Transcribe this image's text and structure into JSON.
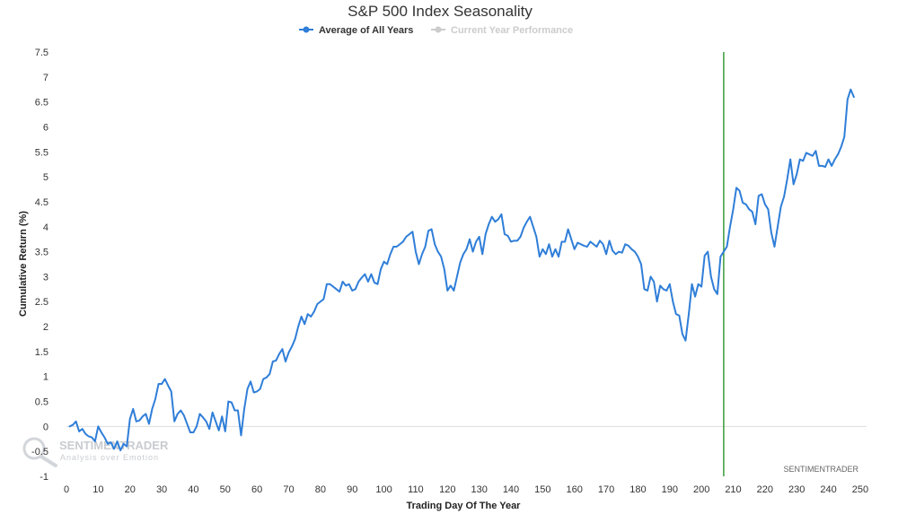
{
  "chart_data": {
    "type": "line",
    "title": "S&P 500 Index Seasonality",
    "xlabel": "Trading Day Of The Year",
    "ylabel": "Cumulative Return (%)",
    "xlim": [
      0,
      252
    ],
    "ylim": [
      -1,
      7.5
    ],
    "x_ticks": [
      0,
      10,
      20,
      30,
      40,
      50,
      60,
      70,
      80,
      90,
      100,
      110,
      120,
      130,
      140,
      150,
      160,
      170,
      180,
      190,
      200,
      210,
      220,
      230,
      240,
      250
    ],
    "y_ticks": [
      -1,
      -0.5,
      0,
      0.5,
      1,
      1.5,
      2,
      2.5,
      3,
      3.5,
      4,
      4.5,
      5,
      5.5,
      6,
      6.5,
      7,
      7.5
    ],
    "grid": "horizontal-zero-line-only",
    "legend_position": "top-center",
    "vertical_marker_x": 207,
    "vertical_marker_color": "#3a9b3a",
    "series": [
      {
        "name": "Average of All Years",
        "color": "#2f7ed8",
        "visible": true,
        "points": [
          [
            1,
            0.0
          ],
          [
            2,
            0.03
          ],
          [
            3,
            0.1
          ],
          [
            4,
            -0.1
          ],
          [
            5,
            -0.05
          ],
          [
            6,
            -0.15
          ],
          [
            7,
            -0.2
          ],
          [
            8,
            -0.22
          ],
          [
            9,
            -0.3
          ],
          [
            10,
            0.0
          ],
          [
            11,
            -0.12
          ],
          [
            12,
            -0.22
          ],
          [
            13,
            -0.35
          ],
          [
            14,
            -0.32
          ],
          [
            15,
            -0.45
          ],
          [
            16,
            -0.3
          ],
          [
            17,
            -0.48
          ],
          [
            18,
            -0.35
          ],
          [
            19,
            -0.4
          ],
          [
            20,
            0.15
          ],
          [
            21,
            0.35
          ],
          [
            22,
            0.1
          ],
          [
            23,
            0.12
          ],
          [
            24,
            0.2
          ],
          [
            25,
            0.25
          ],
          [
            26,
            0.05
          ],
          [
            27,
            0.35
          ],
          [
            28,
            0.55
          ],
          [
            29,
            0.85
          ],
          [
            30,
            0.85
          ],
          [
            31,
            0.95
          ],
          [
            32,
            0.82
          ],
          [
            33,
            0.7
          ],
          [
            34,
            0.1
          ],
          [
            35,
            0.25
          ],
          [
            36,
            0.32
          ],
          [
            37,
            0.22
          ],
          [
            38,
            0.05
          ],
          [
            39,
            -0.12
          ],
          [
            40,
            -0.12
          ],
          [
            41,
            0.0
          ],
          [
            42,
            0.25
          ],
          [
            43,
            0.18
          ],
          [
            44,
            0.1
          ],
          [
            45,
            -0.05
          ],
          [
            46,
            0.28
          ],
          [
            47,
            0.1
          ],
          [
            48,
            -0.08
          ],
          [
            49,
            0.2
          ],
          [
            50,
            -0.1
          ],
          [
            51,
            0.5
          ],
          [
            52,
            0.48
          ],
          [
            53,
            0.32
          ],
          [
            54,
            0.32
          ],
          [
            55,
            -0.18
          ],
          [
            56,
            0.35
          ],
          [
            57,
            0.75
          ],
          [
            58,
            0.9
          ],
          [
            59,
            0.68
          ],
          [
            60,
            0.7
          ],
          [
            61,
            0.75
          ],
          [
            62,
            0.95
          ],
          [
            63,
            0.98
          ],
          [
            64,
            1.05
          ],
          [
            65,
            1.3
          ],
          [
            66,
            1.32
          ],
          [
            67,
            1.45
          ],
          [
            68,
            1.55
          ],
          [
            69,
            1.3
          ],
          [
            70,
            1.48
          ],
          [
            71,
            1.6
          ],
          [
            72,
            1.75
          ],
          [
            73,
            2.0
          ],
          [
            74,
            2.2
          ],
          [
            75,
            2.05
          ],
          [
            76,
            2.25
          ],
          [
            77,
            2.2
          ],
          [
            78,
            2.3
          ],
          [
            79,
            2.45
          ],
          [
            80,
            2.5
          ],
          [
            81,
            2.55
          ],
          [
            82,
            2.85
          ],
          [
            83,
            2.85
          ],
          [
            84,
            2.8
          ],
          [
            85,
            2.75
          ],
          [
            86,
            2.7
          ],
          [
            87,
            2.9
          ],
          [
            88,
            2.82
          ],
          [
            89,
            2.85
          ],
          [
            90,
            2.72
          ],
          [
            91,
            2.75
          ],
          [
            92,
            2.9
          ],
          [
            93,
            2.98
          ],
          [
            94,
            3.05
          ],
          [
            95,
            2.9
          ],
          [
            96,
            3.05
          ],
          [
            97,
            2.88
          ],
          [
            98,
            2.85
          ],
          [
            99,
            3.15
          ],
          [
            100,
            3.3
          ],
          [
            101,
            3.25
          ],
          [
            102,
            3.45
          ],
          [
            103,
            3.6
          ],
          [
            104,
            3.6
          ],
          [
            105,
            3.65
          ],
          [
            106,
            3.7
          ],
          [
            107,
            3.8
          ],
          [
            108,
            3.85
          ],
          [
            109,
            3.9
          ],
          [
            110,
            3.5
          ],
          [
            111,
            3.25
          ],
          [
            112,
            3.45
          ],
          [
            113,
            3.6
          ],
          [
            114,
            3.92
          ],
          [
            115,
            3.95
          ],
          [
            116,
            3.65
          ],
          [
            117,
            3.5
          ],
          [
            118,
            3.4
          ],
          [
            119,
            3.15
          ],
          [
            120,
            2.72
          ],
          [
            121,
            2.82
          ],
          [
            122,
            2.72
          ],
          [
            123,
            3.0
          ],
          [
            124,
            3.28
          ],
          [
            125,
            3.45
          ],
          [
            126,
            3.55
          ],
          [
            127,
            3.75
          ],
          [
            128,
            3.5
          ],
          [
            129,
            3.7
          ],
          [
            130,
            3.8
          ],
          [
            131,
            3.45
          ],
          [
            132,
            3.85
          ],
          [
            133,
            4.05
          ],
          [
            134,
            4.2
          ],
          [
            135,
            4.1
          ],
          [
            136,
            4.15
          ],
          [
            137,
            4.25
          ],
          [
            138,
            3.85
          ],
          [
            139,
            3.82
          ],
          [
            140,
            3.7
          ],
          [
            141,
            3.72
          ],
          [
            142,
            3.72
          ],
          [
            143,
            3.8
          ],
          [
            144,
            3.98
          ],
          [
            145,
            4.1
          ],
          [
            146,
            4.2
          ],
          [
            147,
            4.0
          ],
          [
            148,
            3.8
          ],
          [
            149,
            3.4
          ],
          [
            150,
            3.55
          ],
          [
            151,
            3.45
          ],
          [
            152,
            3.65
          ],
          [
            153,
            3.4
          ],
          [
            154,
            3.55
          ],
          [
            155,
            3.4
          ],
          [
            156,
            3.7
          ],
          [
            157,
            3.7
          ],
          [
            158,
            3.95
          ],
          [
            159,
            3.75
          ],
          [
            160,
            3.55
          ],
          [
            161,
            3.68
          ],
          [
            162,
            3.65
          ],
          [
            163,
            3.62
          ],
          [
            164,
            3.6
          ],
          [
            165,
            3.7
          ],
          [
            166,
            3.65
          ],
          [
            167,
            3.6
          ],
          [
            168,
            3.72
          ],
          [
            169,
            3.65
          ],
          [
            170,
            3.45
          ],
          [
            171,
            3.72
          ],
          [
            172,
            3.52
          ],
          [
            173,
            3.45
          ],
          [
            174,
            3.5
          ],
          [
            175,
            3.48
          ],
          [
            176,
            3.65
          ],
          [
            177,
            3.62
          ],
          [
            178,
            3.55
          ],
          [
            179,
            3.5
          ],
          [
            180,
            3.4
          ],
          [
            181,
            3.25
          ],
          [
            182,
            2.75
          ],
          [
            183,
            2.72
          ],
          [
            184,
            3.0
          ],
          [
            185,
            2.9
          ],
          [
            186,
            2.5
          ],
          [
            187,
            2.82
          ],
          [
            188,
            2.75
          ],
          [
            189,
            2.72
          ],
          [
            190,
            2.85
          ],
          [
            191,
            2.5
          ],
          [
            192,
            2.25
          ],
          [
            193,
            2.22
          ],
          [
            194,
            1.85
          ],
          [
            195,
            1.72
          ],
          [
            196,
            2.25
          ],
          [
            197,
            2.85
          ],
          [
            198,
            2.6
          ],
          [
            199,
            2.85
          ],
          [
            200,
            2.8
          ],
          [
            201,
            3.42
          ],
          [
            202,
            3.5
          ],
          [
            203,
            3.0
          ],
          [
            204,
            2.75
          ],
          [
            205,
            2.65
          ],
          [
            206,
            3.4
          ],
          [
            207,
            3.5
          ],
          [
            208,
            3.6
          ],
          [
            209,
            4.0
          ],
          [
            210,
            4.35
          ],
          [
            211,
            4.78
          ],
          [
            212,
            4.72
          ],
          [
            213,
            4.48
          ],
          [
            214,
            4.45
          ],
          [
            215,
            4.35
          ],
          [
            216,
            4.3
          ],
          [
            217,
            4.05
          ],
          [
            218,
            4.62
          ],
          [
            219,
            4.65
          ],
          [
            220,
            4.45
          ],
          [
            221,
            4.35
          ],
          [
            222,
            3.88
          ],
          [
            223,
            3.6
          ],
          [
            224,
            4.0
          ],
          [
            225,
            4.4
          ],
          [
            226,
            4.6
          ],
          [
            227,
            4.95
          ],
          [
            228,
            5.35
          ],
          [
            229,
            4.85
          ],
          [
            230,
            5.05
          ],
          [
            231,
            5.35
          ],
          [
            232,
            5.32
          ],
          [
            233,
            5.48
          ],
          [
            234,
            5.45
          ],
          [
            235,
            5.42
          ],
          [
            236,
            5.52
          ],
          [
            237,
            5.22
          ],
          [
            238,
            5.22
          ],
          [
            239,
            5.2
          ],
          [
            240,
            5.35
          ],
          [
            241,
            5.22
          ],
          [
            242,
            5.35
          ],
          [
            243,
            5.45
          ],
          [
            244,
            5.6
          ],
          [
            245,
            5.8
          ],
          [
            246,
            6.55
          ],
          [
            247,
            6.75
          ],
          [
            248,
            6.6
          ]
        ]
      },
      {
        "name": "Current Year Performance",
        "color": "#cccccc",
        "visible": false,
        "points": []
      }
    ]
  },
  "watermark": {
    "brand": "SENTIMENTRADER",
    "tagline": "Analysis over Emotion"
  },
  "credit": "SENTIMENTRADER"
}
